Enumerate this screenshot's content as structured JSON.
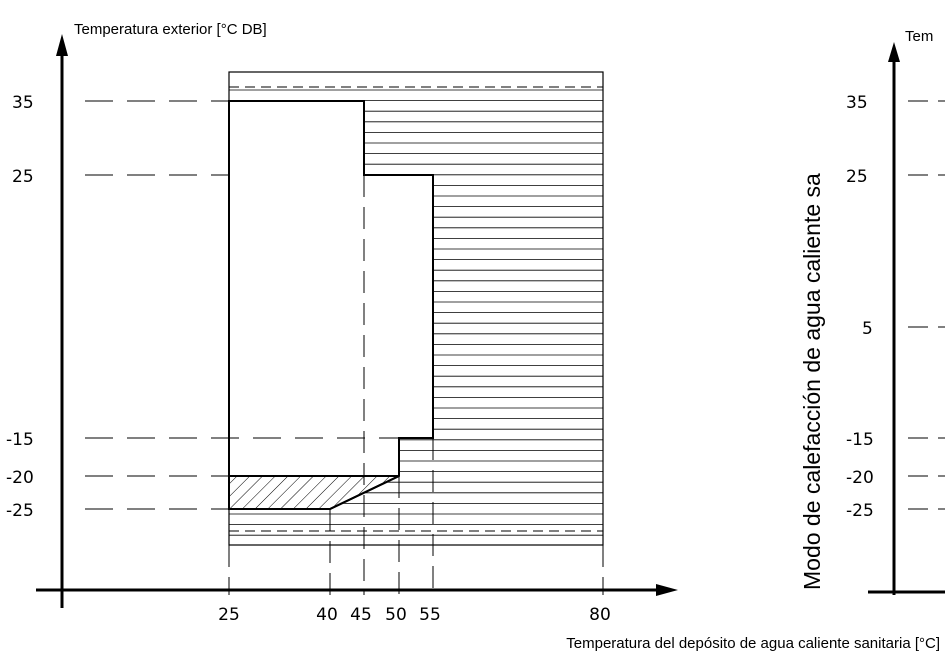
{
  "left_chart": {
    "y_title": "Temperatura exterior [°C DB]",
    "x_title": "Temperatura del depósito de agua caliente sanitaria [°C]",
    "y_ticks": [
      "35",
      "25",
      "-15",
      "-20",
      "-25"
    ],
    "x_ticks": [
      "25",
      "40",
      "45",
      "50",
      "55",
      "80"
    ]
  },
  "right_chart": {
    "side_title": "Modo de calefacción de agua caliente sa",
    "y_title_partial": "Tem",
    "y_ticks": [
      "35",
      "25",
      "5",
      "-15",
      "-20",
      "-25"
    ]
  },
  "chart_data": {
    "type": "area",
    "x_unit": "°C",
    "y_unit": "°C DB",
    "x_range": [
      25,
      80
    ],
    "y_range": [
      -25,
      35
    ],
    "operating_envelope": [
      [
        25,
        35
      ],
      [
        45,
        35
      ],
      [
        45,
        25
      ],
      [
        55,
        25
      ],
      [
        55,
        -15
      ],
      [
        50,
        -15
      ],
      [
        50,
        -20
      ],
      [
        40,
        -25
      ],
      [
        25,
        -25
      ]
    ],
    "hatched_region": [
      [
        25,
        -20
      ],
      [
        50,
        -20
      ],
      [
        40,
        -25
      ],
      [
        25,
        -25
      ]
    ],
    "horizontal_lined_region_x": [
      25,
      80
    ]
  }
}
